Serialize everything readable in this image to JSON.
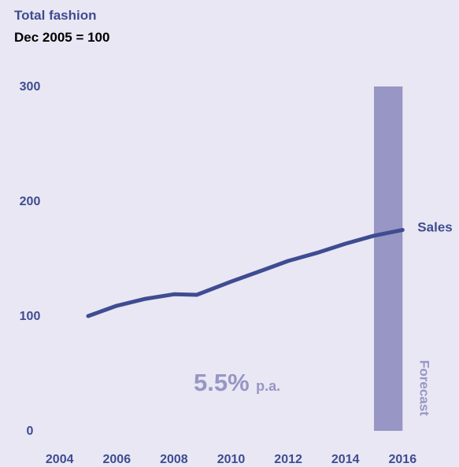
{
  "chart_data": {
    "type": "line",
    "title": "Total fashion",
    "subtitle": "Dec 2005 = 100",
    "xlabel": "",
    "ylabel": "",
    "xlim": [
      2005,
      2016
    ],
    "ylim": [
      0,
      300
    ],
    "x_ticks": [
      "2004",
      "2006",
      "2008",
      "2010",
      "2012",
      "2014",
      "2016"
    ],
    "y_ticks": [
      "0",
      "100",
      "200",
      "300"
    ],
    "grid": false,
    "series": [
      {
        "name": "Sales",
        "x": [
          2005,
          2006,
          2007,
          2008,
          2008.8,
          2010,
          2011,
          2012,
          2013,
          2014,
          2015,
          2016
        ],
        "y": [
          100,
          109,
          115,
          119,
          118.5,
          130,
          139,
          148,
          155,
          163,
          170,
          175
        ]
      }
    ],
    "forecast": {
      "label": "Forecast",
      "x_from": 2015,
      "x_to": 2016
    },
    "annotation": {
      "value": "5.5%",
      "suffix": "p.a."
    },
    "colors": {
      "background": "#e8e7f3",
      "line": "#3f4c91",
      "forecast_band": "#9896c4",
      "annotation": "#9896c4",
      "axis_text": "#3f4c91",
      "subtitle_text": "#000000"
    }
  }
}
